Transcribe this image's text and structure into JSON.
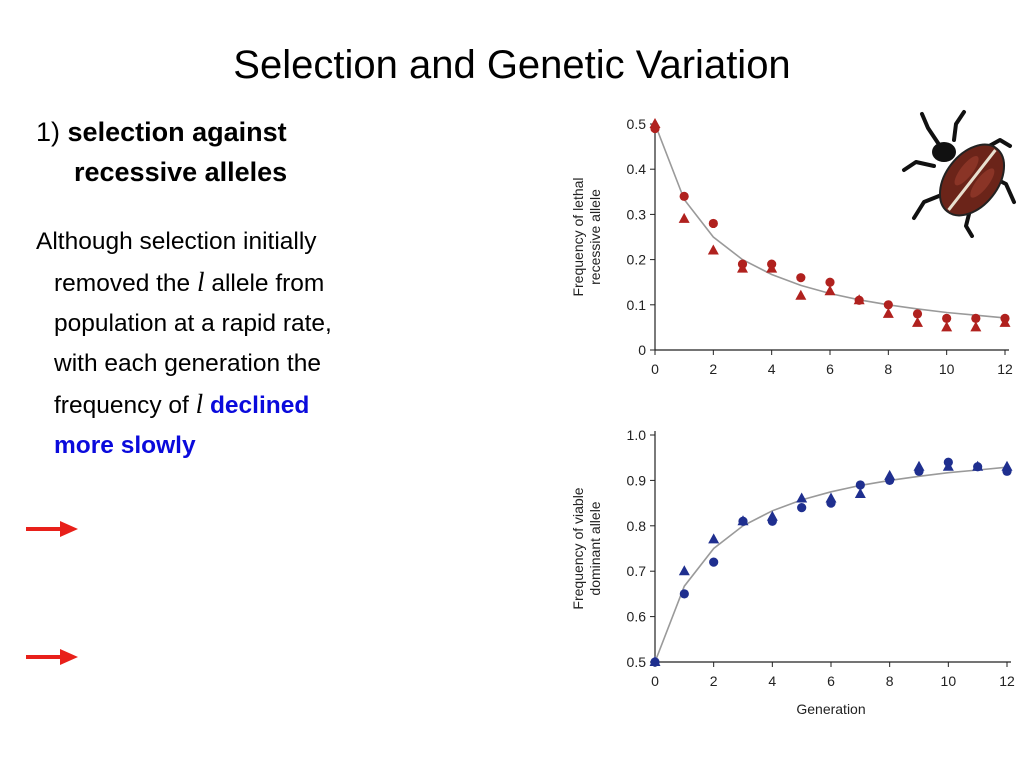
{
  "slide": {
    "title": "Selection and Genetic Variation",
    "heading_number": "1)",
    "heading_line1": "selection against",
    "heading_line2": "recessive alleles",
    "body": {
      "line1": "Although selection initially",
      "line2_pre": "removed the ",
      "allele_symbol": "l",
      "line2_post": " allele from",
      "line3": "population at a rapid rate,",
      "line4": "with each generation the",
      "line5_pre": "frequency of ",
      "line5_post": " ",
      "highlight1": "declined",
      "highlight2": "more slowly"
    },
    "arrow_color": "#e8201a",
    "highlight_color": "#0a0adc"
  },
  "chart_data": [
    {
      "type": "scatter",
      "ylabel_line1": "Frequency of lethal",
      "ylabel_line2": "recessive allele",
      "xlabel": "",
      "xlim": [
        0,
        12
      ],
      "ylim": [
        0,
        0.5
      ],
      "x_ticks": [
        "0",
        "2",
        "4",
        "6",
        "8",
        "10",
        "12"
      ],
      "y_ticks": [
        "0",
        "0.1",
        "0.2",
        "0.3",
        "0.4",
        "0.5"
      ],
      "color": "#b0211e",
      "series": [
        {
          "marker": "circle",
          "x": [
            0,
            1,
            2,
            3,
            4,
            5,
            6,
            7,
            8,
            9,
            10,
            11,
            12
          ],
          "values": [
            0.49,
            0.34,
            0.28,
            0.19,
            0.19,
            0.16,
            0.15,
            0.11,
            0.1,
            0.08,
            0.07,
            0.07,
            0.07
          ]
        },
        {
          "marker": "triangle",
          "x": [
            0,
            1,
            2,
            3,
            4,
            5,
            6,
            7,
            8,
            9,
            10,
            11,
            12
          ],
          "values": [
            0.5,
            0.29,
            0.22,
            0.18,
            0.18,
            0.12,
            0.13,
            0.11,
            0.08,
            0.06,
            0.05,
            0.05,
            0.06
          ]
        }
      ],
      "curve": [
        [
          0,
          0.5
        ],
        [
          1,
          0.333
        ],
        [
          2,
          0.25
        ],
        [
          3,
          0.2
        ],
        [
          4,
          0.167
        ],
        [
          5,
          0.143
        ],
        [
          6,
          0.125
        ],
        [
          7,
          0.111
        ],
        [
          8,
          0.1
        ],
        [
          9,
          0.091
        ],
        [
          10,
          0.083
        ],
        [
          11,
          0.077
        ],
        [
          12,
          0.071
        ]
      ]
    },
    {
      "type": "scatter",
      "ylabel_line1": "Frequency of viable",
      "ylabel_line2": "dominant allele",
      "xlabel": "Generation",
      "xlim": [
        0,
        12
      ],
      "ylim": [
        0.5,
        1.0
      ],
      "x_ticks": [
        "0",
        "2",
        "4",
        "6",
        "8",
        "10",
        "12"
      ],
      "y_ticks": [
        "0.5",
        "0.6",
        "0.7",
        "0.8",
        "0.9",
        "1.0"
      ],
      "color": "#1f2f8f",
      "series": [
        {
          "marker": "circle",
          "x": [
            0,
            1,
            2,
            3,
            4,
            5,
            6,
            7,
            8,
            9,
            10,
            11,
            12
          ],
          "values": [
            0.5,
            0.65,
            0.72,
            0.81,
            0.81,
            0.84,
            0.85,
            0.89,
            0.9,
            0.92,
            0.94,
            0.93,
            0.92
          ]
        },
        {
          "marker": "triangle",
          "x": [
            0,
            1,
            2,
            3,
            4,
            5,
            6,
            7,
            8,
            9,
            10,
            11,
            12
          ],
          "values": [
            0.5,
            0.7,
            0.77,
            0.81,
            0.82,
            0.86,
            0.86,
            0.87,
            0.91,
            0.93,
            0.93,
            0.93,
            0.93
          ]
        }
      ],
      "curve": [
        [
          0,
          0.5
        ],
        [
          1,
          0.667
        ],
        [
          2,
          0.75
        ],
        [
          3,
          0.8
        ],
        [
          4,
          0.833
        ],
        [
          5,
          0.857
        ],
        [
          6,
          0.875
        ],
        [
          7,
          0.889
        ],
        [
          8,
          0.9
        ],
        [
          9,
          0.909
        ],
        [
          10,
          0.917
        ],
        [
          11,
          0.923
        ],
        [
          12,
          0.929
        ]
      ]
    }
  ]
}
